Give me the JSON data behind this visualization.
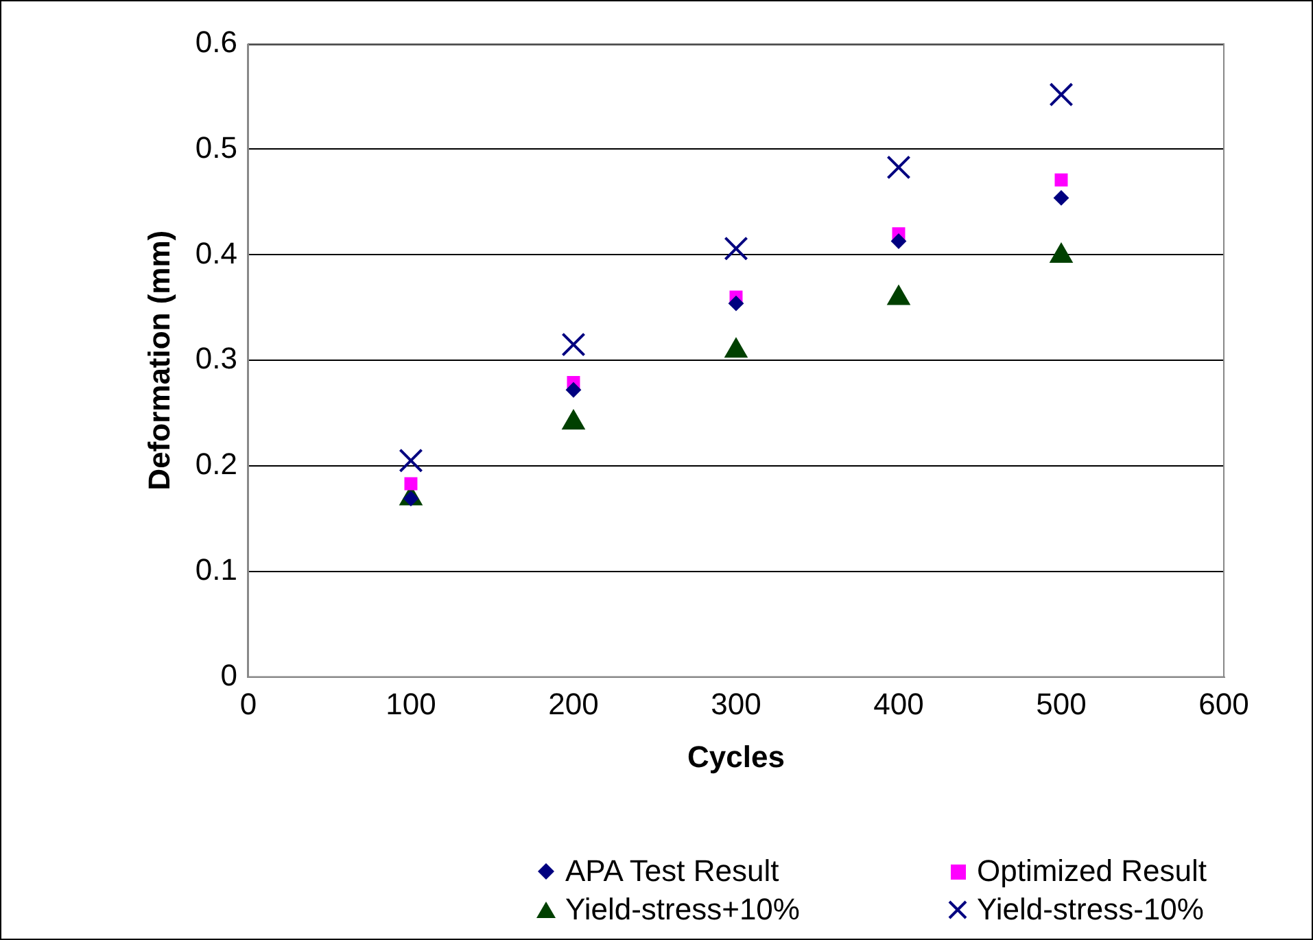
{
  "chart_data": {
    "type": "scatter",
    "xlabel": "Cycles",
    "ylabel": "Deformation (mm)",
    "xlim": [
      0,
      600
    ],
    "xticks": [
      0,
      100,
      200,
      300,
      400,
      500,
      600
    ],
    "ylim": [
      0,
      0.6
    ],
    "yticks": [
      0,
      0.1,
      0.2,
      0.3,
      0.4,
      0.5,
      0.6
    ],
    "grid": "y",
    "legend": "bottom",
    "x": [
      100,
      200,
      300,
      400,
      500
    ],
    "series": [
      {
        "name": "APA Test Result",
        "color": "#000080",
        "marker": "diamond",
        "values": [
          0.169,
          0.272,
          0.354,
          0.413,
          0.454
        ]
      },
      {
        "name": "Optimized Result",
        "color": "#ff00ff",
        "marker": "square",
        "values": [
          0.183,
          0.279,
          0.36,
          0.42,
          0.471
        ]
      },
      {
        "name": "Yield-stress+10%",
        "color": "#004000",
        "marker": "triangle",
        "values": [
          0.169,
          0.241,
          0.309,
          0.359,
          0.399
        ]
      },
      {
        "name": "Yield-stress-10%",
        "color": "#000080",
        "marker": "cross",
        "values": [
          0.205,
          0.315,
          0.406,
          0.483,
          0.552
        ]
      }
    ]
  }
}
